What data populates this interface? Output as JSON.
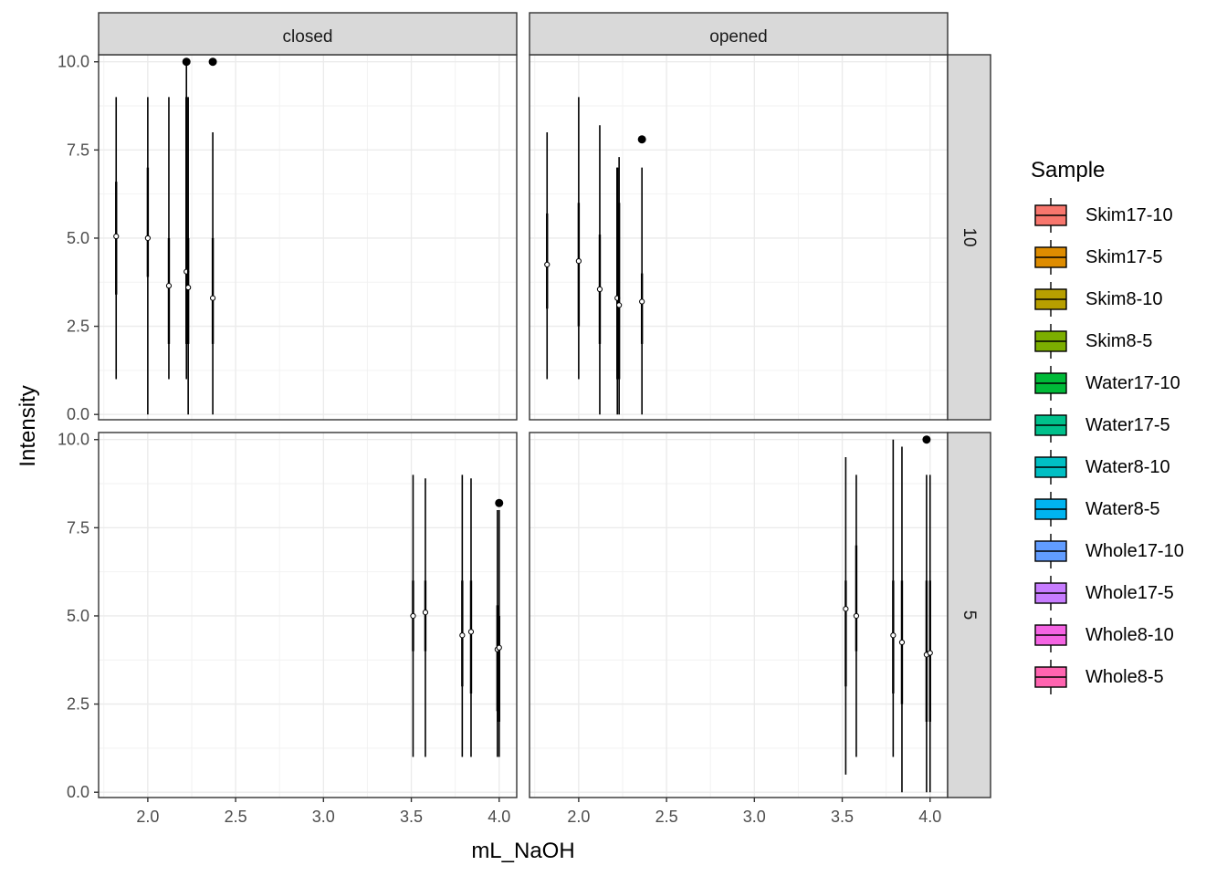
{
  "chart_data": {
    "type": "boxplot",
    "x_label": "mL_NaOH",
    "y_label": "Intensity",
    "xlim": [
      1.72,
      4.1
    ],
    "ylim": [
      -0.15,
      10.2
    ],
    "x_ticks": [
      2.0,
      2.5,
      3.0,
      3.5,
      4.0
    ],
    "x_tick_labels": [
      "2.0",
      "2.5",
      "3.0",
      "3.5",
      "4.0"
    ],
    "y_ticks": [
      0,
      2.5,
      5.0,
      7.5,
      10.0
    ],
    "y_tick_labels": [
      "0.0",
      "2.5",
      "5.0",
      "7.5",
      "10.0"
    ],
    "facet_cols": [
      "closed",
      "opened"
    ],
    "facet_rows": [
      "10",
      "5"
    ],
    "grid": true,
    "legend": {
      "title": "Sample",
      "position": "right",
      "items": [
        {
          "label": "Skim17-10",
          "color": "#F8766D"
        },
        {
          "label": "Skim17-5",
          "color": "#DE8C00"
        },
        {
          "label": "Skim8-10",
          "color": "#B79F00"
        },
        {
          "label": "Skim8-5",
          "color": "#7CAE00"
        },
        {
          "label": "Water17-10",
          "color": "#00BA38"
        },
        {
          "label": "Water17-5",
          "color": "#00C08B"
        },
        {
          "label": "Water8-10",
          "color": "#00BFC4"
        },
        {
          "label": "Water8-5",
          "color": "#00B4F0"
        },
        {
          "label": "Whole17-10",
          "color": "#619CFF"
        },
        {
          "label": "Whole17-5",
          "color": "#C77CFF"
        },
        {
          "label": "Whole8-10",
          "color": "#F564E3"
        },
        {
          "label": "Whole8-5",
          "color": "#FF64B0"
        }
      ]
    },
    "panels": [
      {
        "col": "closed",
        "row": "10",
        "boxes": [
          {
            "x": 1.82,
            "low": 1.0,
            "q1": 3.4,
            "q3": 6.6,
            "high": 9.0,
            "mean": 5.05
          },
          {
            "x": 2.0,
            "low": 0.0,
            "q1": 3.9,
            "q3": 7.0,
            "high": 9.0,
            "mean": 5.0
          },
          {
            "x": 2.12,
            "low": 1.0,
            "q1": 2.0,
            "q3": 5.0,
            "high": 9.0,
            "mean": 3.65
          },
          {
            "x": 2.22,
            "low": 1.0,
            "q1": 2.0,
            "q3": 9.0,
            "high": 10.0,
            "mean": 4.05,
            "outliers": [
              10.0
            ]
          },
          {
            "x": 2.23,
            "low": 0.0,
            "q1": 2.0,
            "q3": 5.0,
            "high": 9.0,
            "mean": 3.6
          },
          {
            "x": 2.37,
            "low": 0.0,
            "q1": 2.0,
            "q3": 5.0,
            "high": 8.0,
            "mean": 3.3,
            "outliers": [
              10.0
            ]
          }
        ]
      },
      {
        "col": "opened",
        "row": "10",
        "boxes": [
          {
            "x": 1.82,
            "low": 1.0,
            "q1": 3.0,
            "q3": 5.7,
            "high": 8.0,
            "mean": 4.25
          },
          {
            "x": 2.0,
            "low": 1.0,
            "q1": 2.5,
            "q3": 6.0,
            "high": 9.0,
            "mean": 4.35
          },
          {
            "x": 2.12,
            "low": 0.0,
            "q1": 2.0,
            "q3": 5.1,
            "high": 8.2,
            "mean": 3.55
          },
          {
            "x": 2.22,
            "low": 0.0,
            "q1": 1.0,
            "q3": 7.0,
            "high": 7.0,
            "mean": 3.3
          },
          {
            "x": 2.23,
            "low": 0.0,
            "q1": 1.0,
            "q3": 6.0,
            "high": 7.3,
            "mean": 3.1
          },
          {
            "x": 2.36,
            "low": 0.0,
            "q1": 2.0,
            "q3": 4.0,
            "high": 7.0,
            "mean": 3.2,
            "outliers": [
              7.8
            ]
          }
        ]
      },
      {
        "col": "closed",
        "row": "5",
        "boxes": [
          {
            "x": 3.51,
            "low": 1.0,
            "q1": 4.0,
            "q3": 6.0,
            "high": 9.0,
            "mean": 5.0
          },
          {
            "x": 3.58,
            "low": 1.0,
            "q1": 4.0,
            "q3": 6.0,
            "high": 8.9,
            "mean": 5.1
          },
          {
            "x": 3.79,
            "low": 1.0,
            "q1": 3.0,
            "q3": 6.0,
            "high": 9.0,
            "mean": 4.45
          },
          {
            "x": 3.84,
            "low": 1.0,
            "q1": 2.8,
            "q3": 6.0,
            "high": 8.9,
            "mean": 4.55
          },
          {
            "x": 3.99,
            "low": 1.0,
            "q1": 2.3,
            "q3": 5.3,
            "high": 8.0,
            "mean": 4.05
          },
          {
            "x": 4.0,
            "low": 1.0,
            "q1": 2.0,
            "q3": 5.0,
            "high": 8.0,
            "mean": 4.1,
            "outliers": [
              8.2
            ]
          }
        ]
      },
      {
        "col": "opened",
        "row": "5",
        "boxes": [
          {
            "x": 3.52,
            "low": 0.5,
            "q1": 3.0,
            "q3": 6.0,
            "high": 9.5,
            "mean": 5.2
          },
          {
            "x": 3.58,
            "low": 1.0,
            "q1": 4.0,
            "q3": 7.0,
            "high": 9.0,
            "mean": 5.0
          },
          {
            "x": 3.79,
            "low": 1.0,
            "q1": 2.8,
            "q3": 6.0,
            "high": 10.0,
            "mean": 4.45
          },
          {
            "x": 3.84,
            "low": 0.0,
            "q1": 2.5,
            "q3": 6.0,
            "high": 9.8,
            "mean": 4.25
          },
          {
            "x": 3.98,
            "low": 0.0,
            "q1": 2.0,
            "q3": 6.0,
            "high": 9.0,
            "mean": 3.9,
            "outliers": [
              10.0
            ]
          },
          {
            "x": 4.0,
            "low": 0.0,
            "q1": 2.0,
            "q3": 6.0,
            "high": 9.0,
            "mean": 3.95
          }
        ]
      }
    ]
  }
}
